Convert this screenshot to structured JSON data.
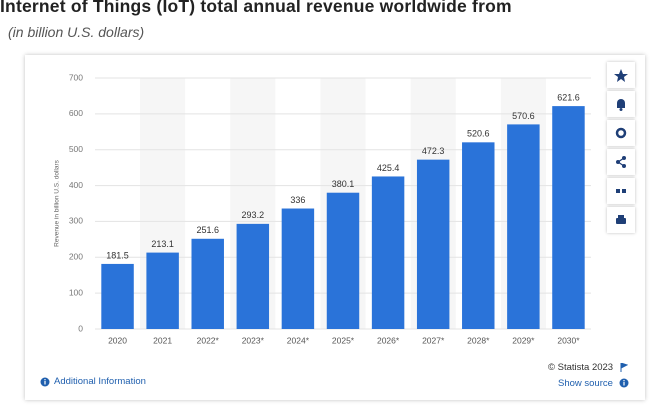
{
  "chart_data": {
    "type": "bar",
    "title": "Internet of Things (IoT) total annual revenue worldwide from",
    "subtitle": "(in billion U.S. dollars)",
    "y_label": "Revenue in billion U.S. dollars",
    "categories": [
      "2020",
      "2021",
      "2022*",
      "2023*",
      "2024*",
      "2025*",
      "2026*",
      "2027*",
      "2028*",
      "2029*",
      "2030*"
    ],
    "values": [
      181.5,
      213.1,
      251.6,
      293.2,
      336,
      380.1,
      425.4,
      472.3,
      520.6,
      570.6,
      621.6
    ],
    "color": "#2a73d9",
    "ylim": [
      0,
      700
    ],
    "yticks": [
      0,
      100,
      200,
      300,
      400,
      500,
      600,
      700
    ],
    "grid": true
  },
  "footer": {
    "info": "Additional Information",
    "copyright": "© Statista 2023",
    "source": "Show source"
  }
}
